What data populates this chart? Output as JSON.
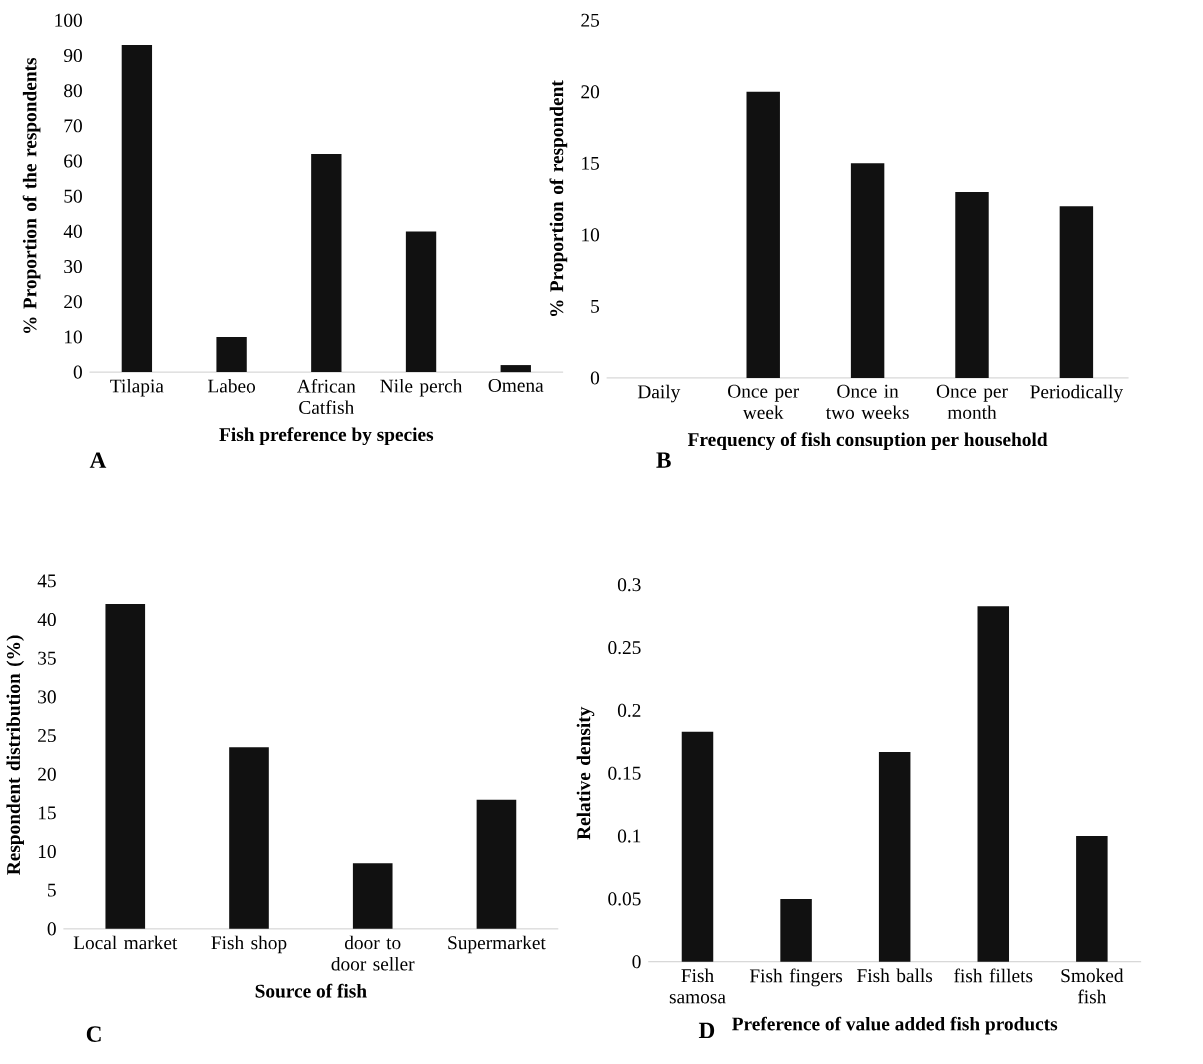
{
  "chart_data": [
    {
      "type": "bar",
      "categories": [
        "Tilapia",
        "Labeo",
        "African Catfish",
        "Nile perch",
        "Omena"
      ],
      "values": [
        93,
        10,
        62,
        40,
        2
      ],
      "color": "#111111",
      "ylim": [
        0,
        100
      ],
      "yticks": [
        0,
        10,
        20,
        30,
        40,
        50,
        60,
        70,
        80,
        90,
        100
      ],
      "ylabel": "% Proportion of the respondents",
      "xlabel": "Fish preference by species",
      "annotations": [
        "A"
      ]
    },
    {
      "type": "bar",
      "categories": [
        "Daily",
        "Once per week",
        "Once in two weeks",
        "Once per month",
        "Periodically"
      ],
      "values": [
        0,
        20,
        15,
        13,
        12
      ],
      "color": "#111111",
      "ylim": [
        0,
        25
      ],
      "yticks": [
        0,
        5,
        10,
        15,
        20,
        25
      ],
      "ylabel": "% Proportion of respondent",
      "xlabel": "Frequency of fish consuption per household",
      "annotations": [
        "B"
      ]
    },
    {
      "type": "bar",
      "categories": [
        "Local market",
        "Fish shop",
        "door to door seller",
        "Supermarket"
      ],
      "values": [
        42,
        23.5,
        8.5,
        16.7
      ],
      "color": "#111111",
      "ylim": [
        0,
        45
      ],
      "yticks": [
        0,
        5,
        10,
        15,
        20,
        25,
        30,
        35,
        40,
        45
      ],
      "ylabel": "Respondent distribution (%)",
      "xlabel": "Source of fish",
      "annotations": [
        "C"
      ]
    },
    {
      "type": "bar",
      "categories": [
        "Fish samosa",
        "Fish fingers",
        "Fish balls",
        "fish fillets",
        "Smoked fish"
      ],
      "values": [
        0.183,
        0.05,
        0.167,
        0.283,
        0.1
      ],
      "color": "#111111",
      "ylim": [
        0,
        0.3
      ],
      "yticks": [
        0,
        0.05,
        0.1,
        0.15,
        0.2,
        0.25,
        0.3
      ],
      "ylabel": "Relative density",
      "xlabel": "Preference of value added fish products",
      "annotations": [
        "D"
      ]
    }
  ]
}
